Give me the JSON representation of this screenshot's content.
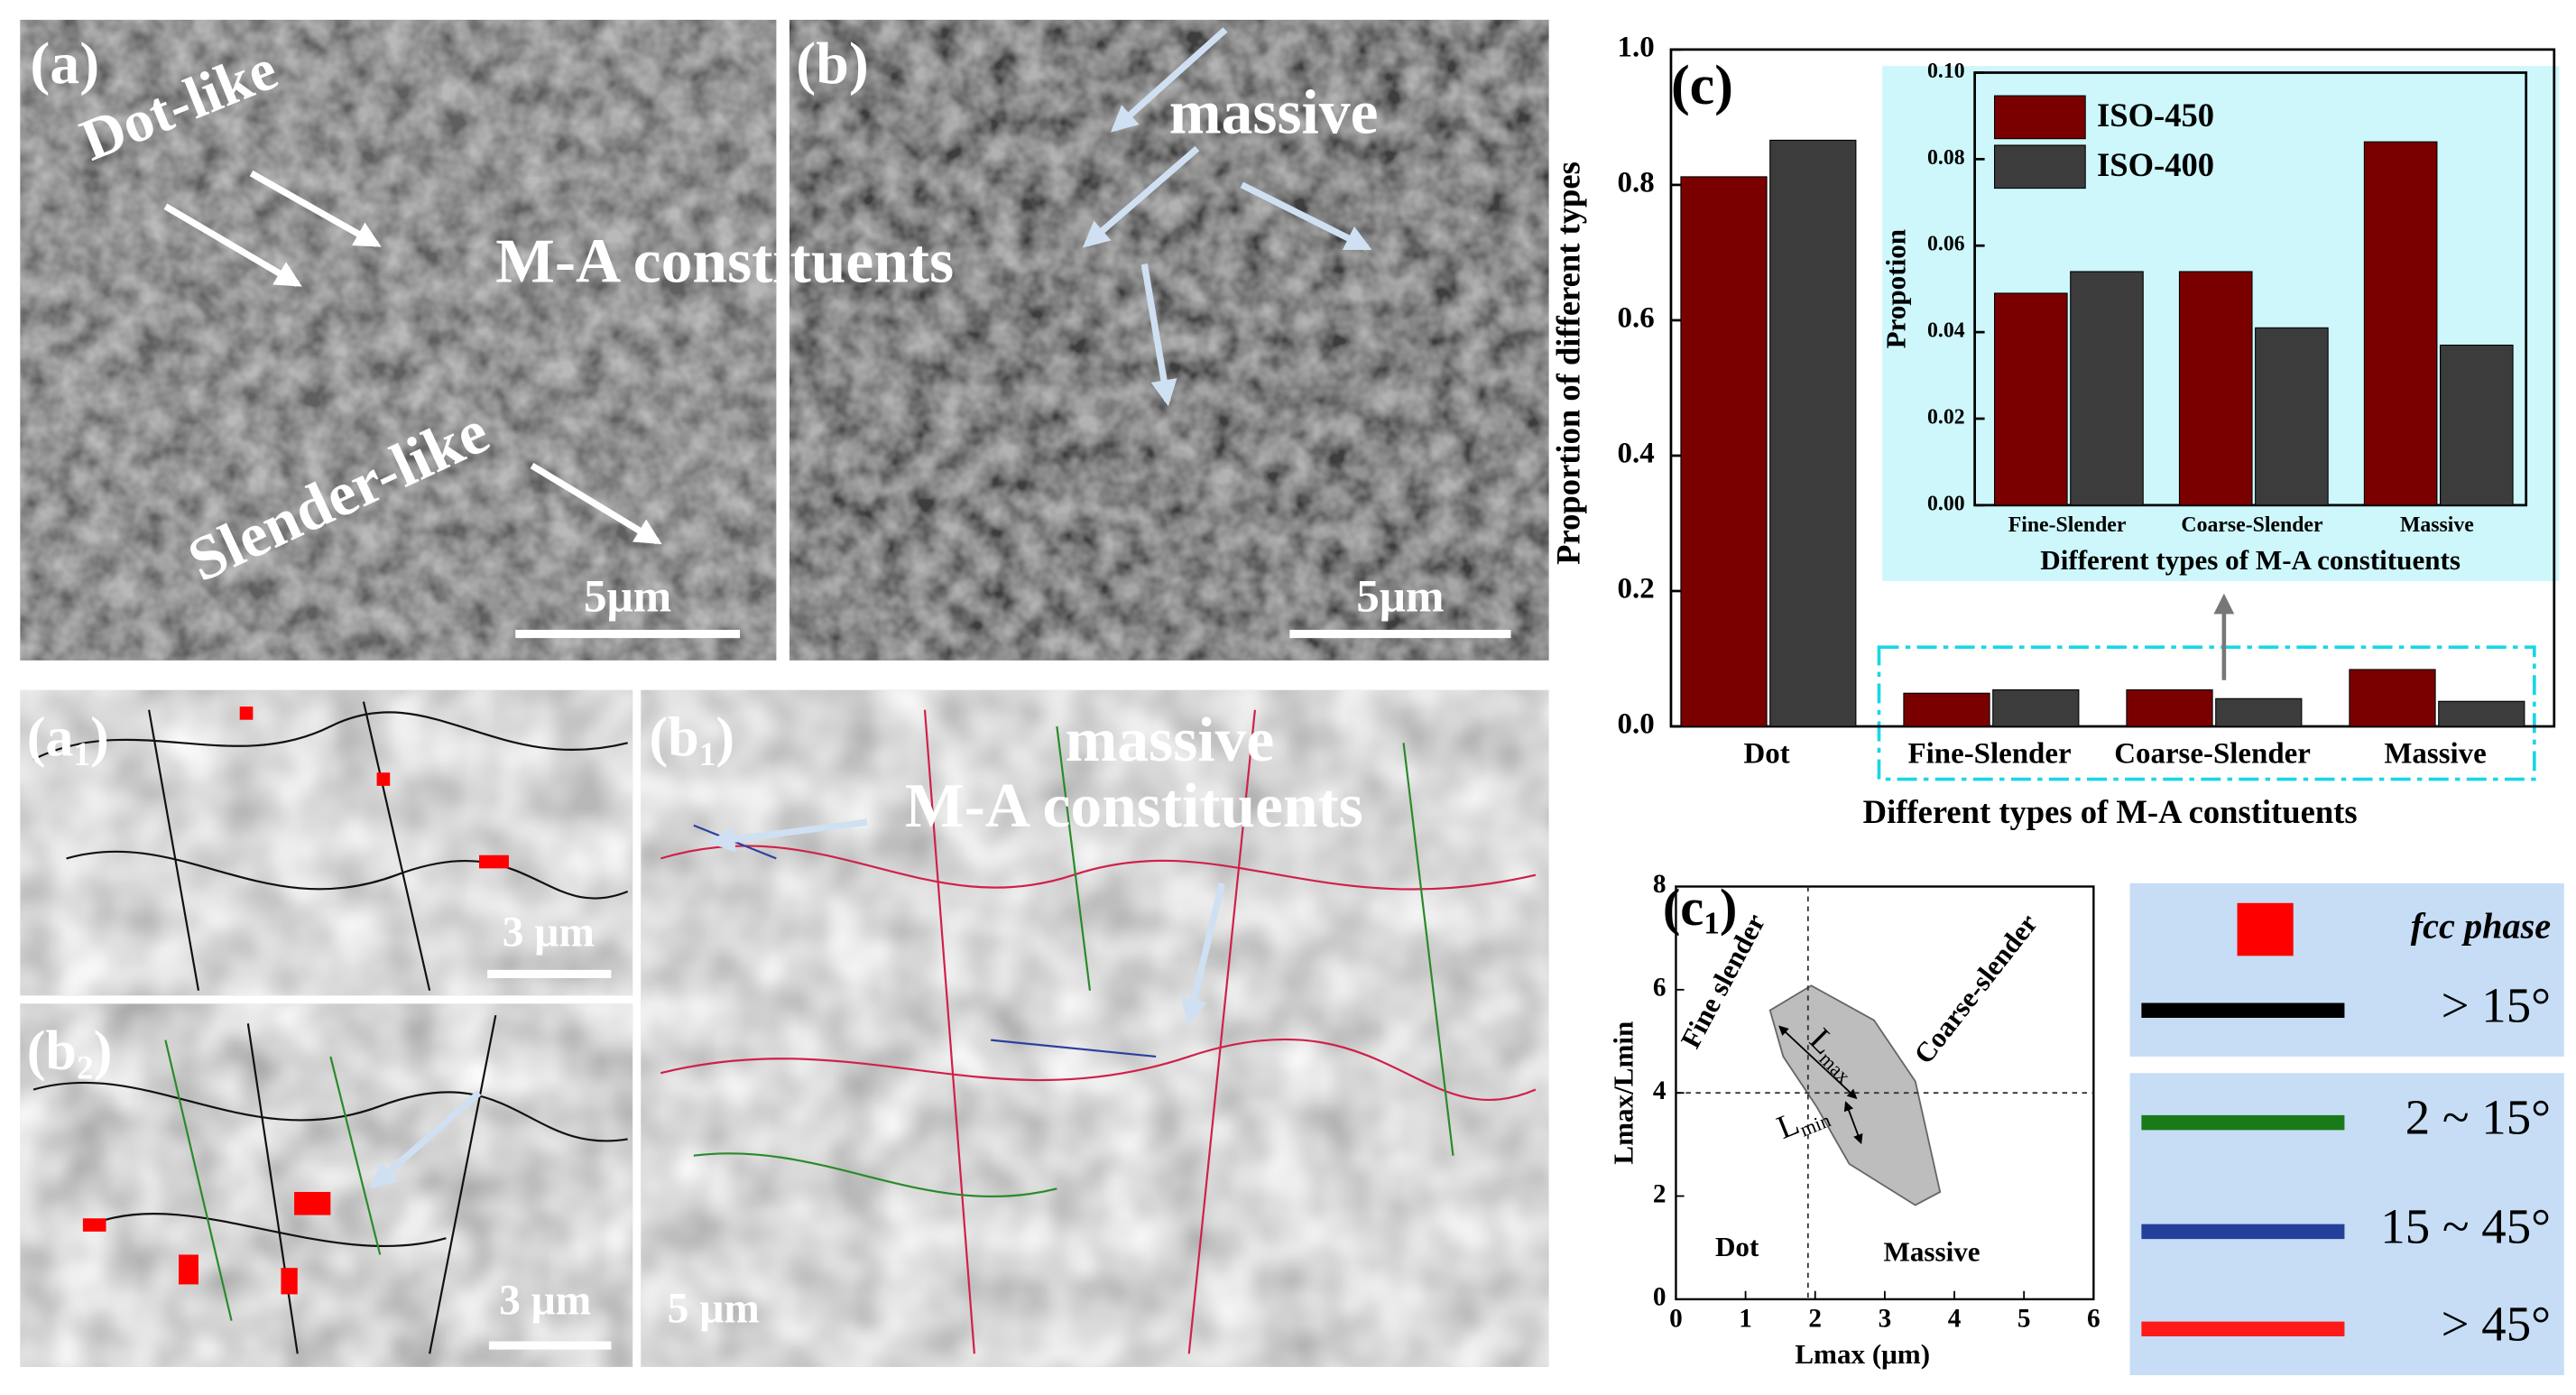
{
  "panels": {
    "a": {
      "label": "(a)",
      "annotations": [
        "Dot-like",
        "M-A constituents",
        "Slender-like"
      ],
      "scale_bar": "5μm"
    },
    "b": {
      "label": "(b)",
      "annotations": [
        "massive"
      ],
      "scale_bar": "5μm"
    },
    "a1": {
      "label": [
        "(a",
        "1",
        ")"
      ],
      "scale_bar": "3 μm"
    },
    "b2": {
      "label": [
        "(b",
        "2",
        ")"
      ],
      "scale_bar": "3 μm"
    },
    "b1": {
      "label": [
        "(b",
        "1",
        ")"
      ],
      "annotations": [
        "massive",
        "M-A constituents"
      ],
      "scale_bar": "5 μm"
    }
  },
  "chart_data": [
    {
      "type": "bar",
      "panel_label": "(c)",
      "ylabel": "Proportion of different types",
      "xlabel": "Different types of M-A constituents",
      "categories": [
        "Dot",
        "Fine-Slender",
        "Coarse-Slender",
        "Massive"
      ],
      "series": [
        {
          "color": "#7a0000",
          "values": [
            0.812,
            0.049,
            0.054,
            0.084
          ]
        },
        {
          "color": "#3c3c3c",
          "values": [
            0.866,
            0.054,
            0.041,
            0.037
          ]
        }
      ],
      "ylim": [
        0,
        1
      ],
      "yticks": [
        {
          "value": 0,
          "label": "0.0"
        },
        0.2,
        0.4,
        0.6,
        0.8,
        {
          "value": 1,
          "label": "1.0"
        }
      ]
    },
    {
      "type": "bar",
      "ylabel": "Propotion",
      "xlabel": "Different types of M-A constituents",
      "categories": [
        "Fine-Slender",
        "Coarse-Slender",
        "Massive"
      ],
      "series": [
        {
          "name": "ISO-450",
          "color": "#7a0000",
          "values": [
            0.049,
            0.054,
            0.084
          ]
        },
        {
          "name": "ISO-400",
          "color": "#3c3c3c",
          "values": [
            0.054,
            0.041,
            0.037
          ]
        }
      ],
      "ylim": [
        0,
        0.1
      ],
      "yticks": [
        {
          "value": 0,
          "label": "0.00"
        },
        0.02,
        0.04,
        0.06,
        0.08,
        {
          "value": 0.1,
          "label": "0.10"
        }
      ],
      "legend": "upper left"
    }
  ],
  "schematic": {
    "label": [
      "(c",
      "1",
      ")"
    ],
    "xlabel": "Lmax (μm)",
    "ylabel": "Lmax/Lmin",
    "xlim": [
      0,
      6
    ],
    "ylim": [
      0,
      8
    ],
    "xticks": [
      0,
      1,
      2,
      3,
      4,
      5,
      6
    ],
    "yticks": [
      0,
      2,
      4,
      6,
      8
    ],
    "regions": [
      "Fine slender",
      "Coarse-slender",
      "Dot",
      "Massive"
    ],
    "lengths": [
      [
        "L",
        "max"
      ],
      [
        "L",
        "min"
      ]
    ]
  },
  "legend_box": {
    "items": [
      {
        "label": "fcc phase",
        "color": "#ff0000",
        "marker": "square"
      },
      {
        "label": "> 15°",
        "color": "#000000",
        "marker": "line"
      },
      {
        "label": "2 ~ 15°",
        "color": "#1a7a1a",
        "marker": "line"
      },
      {
        "label": "15 ~ 45°",
        "color": "#23409a",
        "marker": "line"
      },
      {
        "label": "> 45°",
        "color": "#ff1a1a",
        "marker": "line"
      }
    ]
  }
}
